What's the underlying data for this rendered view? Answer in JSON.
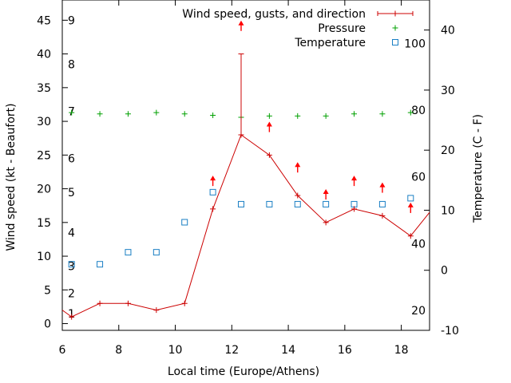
{
  "chart_data": {
    "type": "line",
    "xlabel": "Local time (Europe/Athens)",
    "ylabel": "Wind speed (kt - Beaufort)",
    "y2label": "Temperature (C - F)",
    "xlim": [
      6,
      19
    ],
    "ylim": [
      -1,
      48
    ],
    "y2lim": [
      -10,
      45
    ],
    "x_ticks": [
      "6",
      "8",
      "10",
      "12",
      "14",
      "16",
      "18"
    ],
    "y_ticks": [
      "0",
      "5",
      "10",
      "15",
      "20",
      "25",
      "30",
      "35",
      "40",
      "45"
    ],
    "y2_ticks": [
      "-10",
      "0",
      "10",
      "20",
      "30",
      "40"
    ],
    "beaufort_labels": [
      "1",
      "2",
      "3",
      "4",
      "5",
      "6",
      "7",
      "8",
      "9"
    ],
    "fahrenheit_labels": [
      "20",
      "40",
      "60",
      "80",
      "100"
    ],
    "legend_position": "top-right",
    "grid": false,
    "colors": {
      "wind": "#cc0000",
      "pressure": "#00a000",
      "temperature": "#1a7fc4",
      "direction_arrow": "#ff0000"
    },
    "series": [
      {
        "name": "Wind speed, gusts, and direction",
        "x": [
          6.0,
          6.33,
          7.33,
          8.33,
          9.33,
          10.33,
          11.33,
          12.33,
          13.33,
          14.33,
          15.33,
          16.33,
          17.33,
          18.33,
          19.0
        ],
        "y": [
          2,
          1,
          3,
          3,
          2,
          3,
          17,
          28,
          25,
          19,
          15,
          17,
          16,
          13,
          16.5
        ],
        "gust": {
          "x": 12.33,
          "from": 28,
          "to": 40
        },
        "direction_arrows": [
          {
            "x": 11.33,
            "y": 21
          },
          {
            "x": 12.33,
            "y": 44
          },
          {
            "x": 13.33,
            "y": 29
          },
          {
            "x": 14.33,
            "y": 23
          },
          {
            "x": 15.33,
            "y": 19
          },
          {
            "x": 16.33,
            "y": 21
          },
          {
            "x": 17.33,
            "y": 20
          },
          {
            "x": 18.33,
            "y": 17
          }
        ]
      },
      {
        "name": "Pressure",
        "x": [
          6.33,
          7.33,
          8.33,
          9.33,
          10.33,
          11.33,
          12.33,
          13.33,
          14.33,
          15.33,
          16.33,
          17.33,
          18.33
        ],
        "y": [
          31.3,
          31.1,
          31.1,
          31.3,
          31.1,
          30.9,
          30.6,
          30.8,
          30.8,
          30.8,
          31.1,
          31.1,
          31.3
        ]
      },
      {
        "name": "Temperature",
        "axis": "right",
        "x": [
          6.33,
          7.33,
          8.33,
          9.33,
          10.33,
          11.33,
          12.33,
          13.33,
          14.33,
          15.33,
          16.33,
          17.33,
          18.33
        ],
        "y": [
          1,
          1,
          3,
          3,
          8,
          13,
          11,
          11,
          11,
          11,
          11,
          11,
          12
        ]
      }
    ]
  }
}
